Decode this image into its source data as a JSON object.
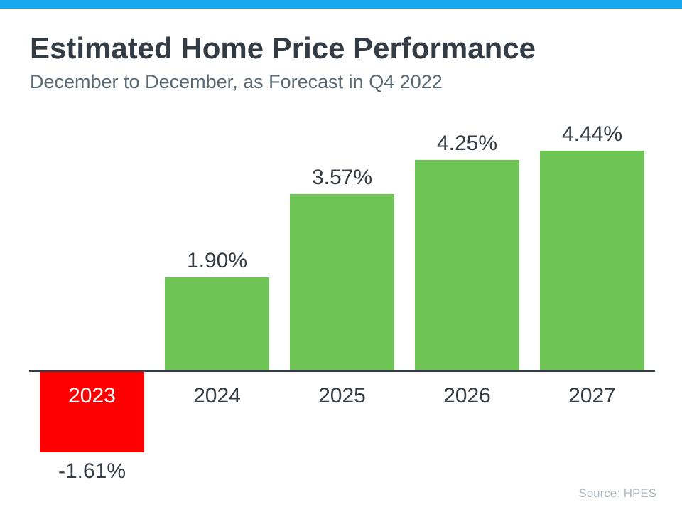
{
  "header": {
    "title": "Estimated Home Price Performance",
    "subtitle": "December to December, as Forecast in Q4 2022"
  },
  "footer": {
    "source": "Source: HPES"
  },
  "colors": {
    "accent_bar": "#18A9EC",
    "bar_positive": "#6EC454",
    "bar_negative": "#FF0000",
    "title_text": "#333B44",
    "subtitle_text": "#5A6A74",
    "axis_line": "#333B44",
    "label_text": "#333B44",
    "negative_year_text": "#FFFFFF",
    "source_text": "#ADB8C0"
  },
  "chart_data": {
    "type": "bar",
    "title": "Estimated Home Price Performance",
    "subtitle": "December to December, as Forecast in Q4 2022",
    "categories": [
      "2023",
      "2024",
      "2025",
      "2026",
      "2027"
    ],
    "values": [
      -1.61,
      1.9,
      3.57,
      4.25,
      4.44
    ],
    "value_labels": [
      "-1.61%",
      "1.90%",
      "3.57%",
      "4.25%",
      "4.44%"
    ],
    "unit": "percent",
    "xlabel": "",
    "ylabel": "",
    "ylim": [
      -2,
      5
    ],
    "baseline": 0,
    "grid": false,
    "legend": "none",
    "annotations": [
      "Negative 2023 bar shown in red below the zero baseline; 2024-2027 bars in green above it; 2023 year label printed in white inside the red bar"
    ]
  }
}
